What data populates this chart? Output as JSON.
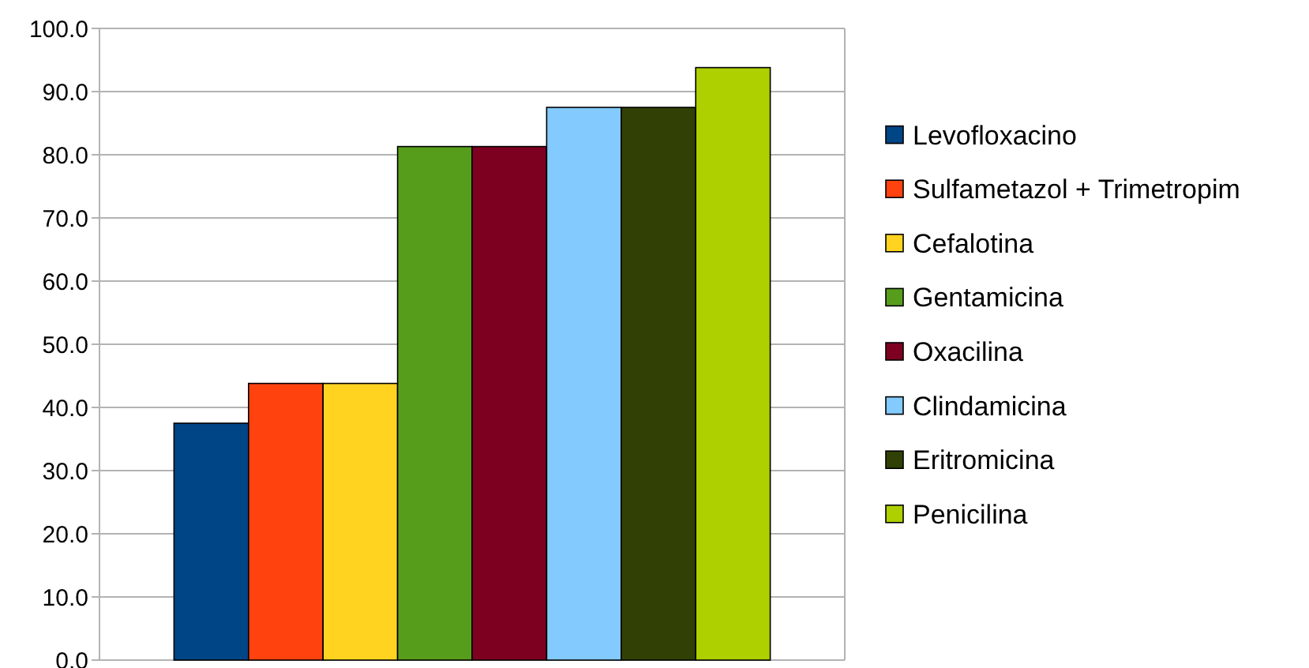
{
  "chart_data": {
    "type": "bar",
    "categories": [
      null
    ],
    "series": [
      {
        "name": "Levofloxacino",
        "color": "#004586",
        "values": [
          37.5
        ]
      },
      {
        "name": "Sulfametazol + Trimetropim",
        "color": "#ff420e",
        "values": [
          43.8
        ]
      },
      {
        "name": "Cefalotina",
        "color": "#ffd320",
        "values": [
          43.8
        ]
      },
      {
        "name": "Gentamicina",
        "color": "#579d1c",
        "values": [
          81.3
        ]
      },
      {
        "name": "Oxacilina",
        "color": "#7e0021",
        "values": [
          81.3
        ]
      },
      {
        "name": "Clindamicina",
        "color": "#83caff",
        "values": [
          87.5
        ]
      },
      {
        "name": "Eritromicina",
        "color": "#314004",
        "values": [
          87.5
        ]
      },
      {
        "name": "Penicilina",
        "color": "#aecf00",
        "values": [
          93.8
        ]
      }
    ],
    "ylim": [
      0,
      100
    ],
    "yticks": [
      {
        "value": 0,
        "label": "0.0"
      },
      {
        "value": 10,
        "label": "10.0"
      },
      {
        "value": 20,
        "label": "20.0"
      },
      {
        "value": 30,
        "label": "30.0"
      },
      {
        "value": 40,
        "label": "40.0"
      },
      {
        "value": 50,
        "label": "50.0"
      },
      {
        "value": 60,
        "label": "60.0"
      },
      {
        "value": 70,
        "label": "70.0"
      },
      {
        "value": 80,
        "label": "80.0"
      },
      {
        "value": 90,
        "label": "90.0"
      },
      {
        "value": 100,
        "label": "100.0"
      }
    ],
    "grid": "y",
    "legend": "right"
  }
}
